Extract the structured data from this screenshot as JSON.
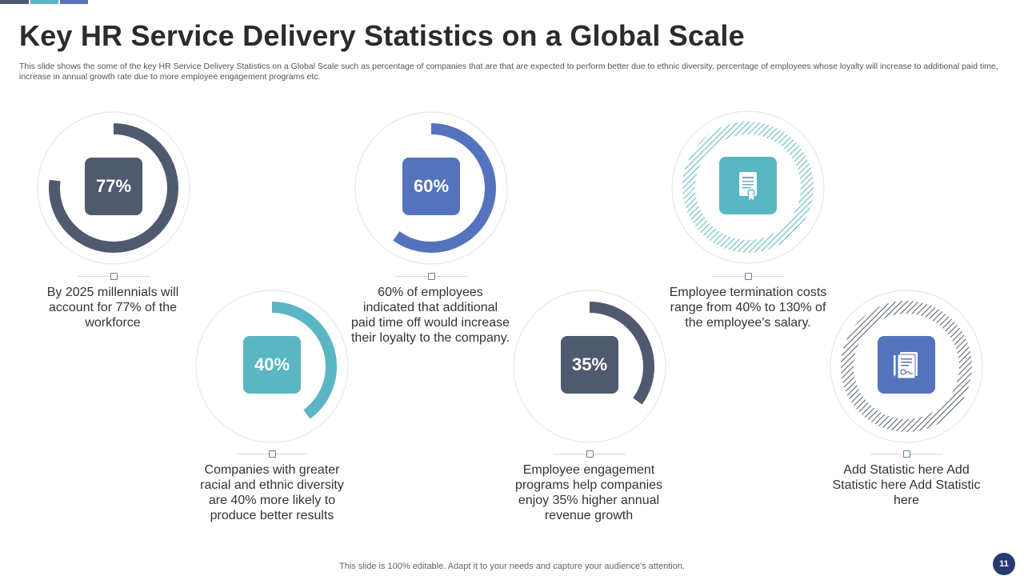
{
  "slide": {
    "title": "Key HR Service Delivery Statistics on a Global Scale",
    "subtitle": "This slide shows the some of the key HR Service Delivery Statistics on a Global Scale such as percentage of companies that are that are expected to perform better due to ethnic diversity, percentage of employees whose loyalty will increase to additional paid time, increase in annual growth rate due to more employee engagement programs etc.",
    "footer": "This slide is 100% editable. Adapt it to your needs and capture your audience's attention.",
    "page_number": "11"
  },
  "colors": {
    "dark_slate": "#505a6e",
    "blue": "#5573bd",
    "teal": "#5ab6c3",
    "topbar": [
      "#505a6e",
      "#5ab6c3",
      "#5573bd"
    ]
  },
  "stats": [
    {
      "value": "77%",
      "percent": 77,
      "color": "#505a6e",
      "description": "By 2025 millennials will account for 77% of the workforce"
    },
    {
      "value": "40%",
      "percent": 40,
      "color": "#5ab6c3",
      "description": "Companies with greater racial and ethnic diversity are 40% more likely to produce better results"
    },
    {
      "value": "60%",
      "percent": 60,
      "color": "#5573bd",
      "description": "60% of employees indicated that additional paid time off would increase their loyalty to the company."
    },
    {
      "value": "35%",
      "percent": 35,
      "color": "#505a6e",
      "description": "Employee engagement programs help companies enjoy 35% higher annual revenue growth"
    },
    {
      "icon": "certificate-icon",
      "color": "#5ab6c3",
      "description": "Employee termination costs range from 40% to 130% of the employee's salary."
    },
    {
      "icon": "contract-document-icon",
      "color": "#5573bd",
      "description": "Add Statistic here Add Statistic here Add Statistic here"
    }
  ]
}
